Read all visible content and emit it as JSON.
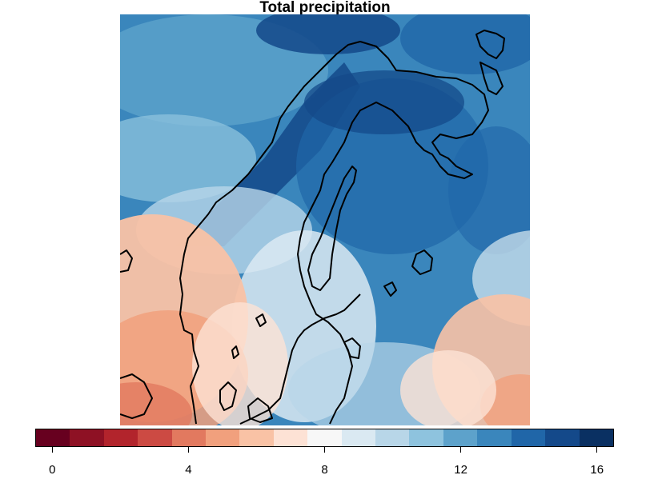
{
  "title": "Total precipitation",
  "map": {
    "variable": "Total precipitation",
    "region": "Scandinavia",
    "overlay": "coastline-contour"
  },
  "legend": {
    "min": 0,
    "max": 17,
    "colors": [
      "#67001f",
      "#8e1124",
      "#b2242c",
      "#cc4a43",
      "#e2795f",
      "#f1a07d",
      "#f9c2a5",
      "#fde2d5",
      "#f7f7f7",
      "#dae9f2",
      "#b8d6e8",
      "#8ec3de",
      "#5da2cb",
      "#3a86bc",
      "#2066a8",
      "#14498a",
      "#0a3062"
    ],
    "ticks": [
      {
        "value": 0,
        "label": "0"
      },
      {
        "value": 4,
        "label": "4"
      },
      {
        "value": 8,
        "label": "8"
      },
      {
        "value": 12,
        "label": "12"
      },
      {
        "value": 16,
        "label": "16"
      }
    ]
  }
}
